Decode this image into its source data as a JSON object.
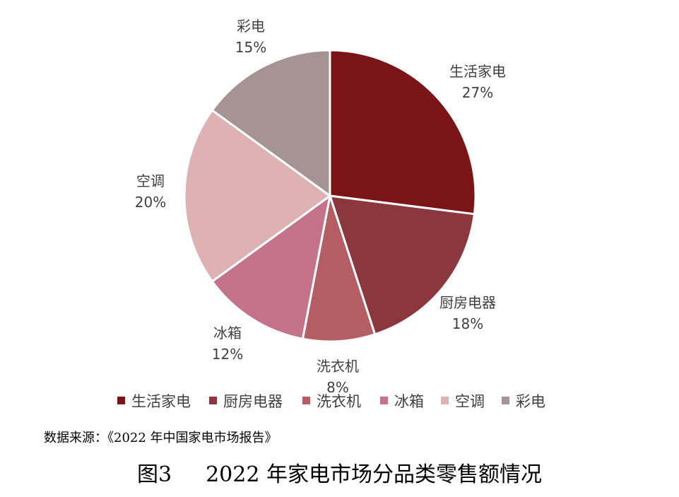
{
  "chart_data": {
    "type": "pie",
    "title": "",
    "categories": [
      "生活家电",
      "厨房电器",
      "洗衣机",
      "冰箱",
      "空调",
      "彩电"
    ],
    "values": [
      27,
      18,
      8,
      12,
      20,
      15
    ],
    "value_labels": [
      "27%",
      "18%",
      "8%",
      "12%",
      "20%",
      "15%"
    ],
    "colors": [
      "#7a1416",
      "#8b373d",
      "#b45d62",
      "#c5738a",
      "#deb1b3",
      "#a69394"
    ],
    "start_angle_deg": 0,
    "direction": "clockwise",
    "legend_position": "bottom"
  },
  "source": "数据来源：《2022 年中国家电市场报告》",
  "caption": {
    "figure_number": "图3",
    "title": "2022 年家电市场分品类零售额情况"
  }
}
